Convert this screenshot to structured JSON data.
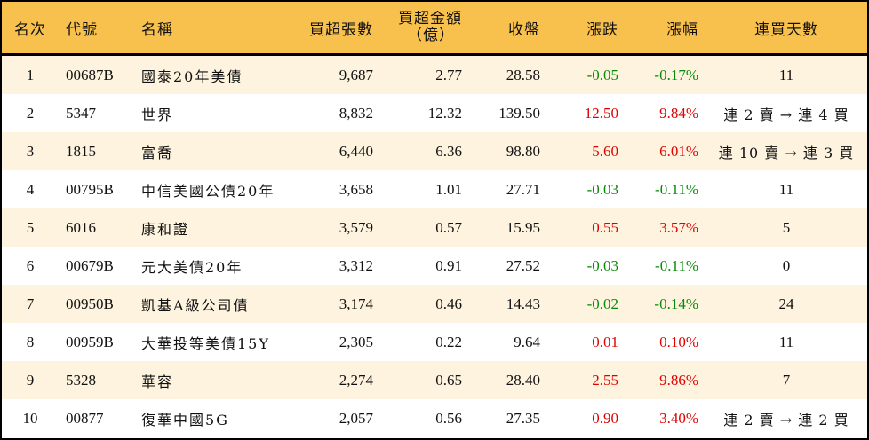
{
  "colors": {
    "header_bg": "#f8c14d",
    "row_odd_bg": "#fdf3de",
    "row_even_bg": "#ffffff",
    "up": "#e00000",
    "down": "#078a07",
    "border": "#000000"
  },
  "table": {
    "headers": {
      "rank": "名次",
      "code": "代號",
      "name": "名稱",
      "net_buy_volume": "買超張數",
      "net_buy_amount_line1": "買超金額",
      "net_buy_amount_line2": "（億）",
      "close": "收盤",
      "change": "漲跌",
      "change_pct": "漲幅",
      "consecutive_days": "連買天數"
    },
    "rows": [
      {
        "rank": "1",
        "code": "00687B",
        "name": "國泰20年美債",
        "volume": "9,687",
        "amount": "2.77",
        "close": "28.58",
        "change": "-0.05",
        "pct": "-0.17%",
        "dir": "down",
        "days": "11"
      },
      {
        "rank": "2",
        "code": "5347",
        "name": "世界",
        "volume": "8,832",
        "amount": "12.32",
        "close": "139.50",
        "change": "12.50",
        "pct": "9.84%",
        "dir": "up",
        "days": "連 2 賣 → 連 4 買"
      },
      {
        "rank": "3",
        "code": "1815",
        "name": "富喬",
        "volume": "6,440",
        "amount": "6.36",
        "close": "98.80",
        "change": "5.60",
        "pct": "6.01%",
        "dir": "up",
        "days": "連 10 賣 → 連 3 買"
      },
      {
        "rank": "4",
        "code": "00795B",
        "name": "中信美國公債20年",
        "volume": "3,658",
        "amount": "1.01",
        "close": "27.71",
        "change": "-0.03",
        "pct": "-0.11%",
        "dir": "down",
        "days": "11"
      },
      {
        "rank": "5",
        "code": "6016",
        "name": "康和證",
        "volume": "3,579",
        "amount": "0.57",
        "close": "15.95",
        "change": "0.55",
        "pct": "3.57%",
        "dir": "up",
        "days": "5"
      },
      {
        "rank": "6",
        "code": "00679B",
        "name": "元大美債20年",
        "volume": "3,312",
        "amount": "0.91",
        "close": "27.52",
        "change": "-0.03",
        "pct": "-0.11%",
        "dir": "down",
        "days": "0"
      },
      {
        "rank": "7",
        "code": "00950B",
        "name": "凱基A級公司債",
        "volume": "3,174",
        "amount": "0.46",
        "close": "14.43",
        "change": "-0.02",
        "pct": "-0.14%",
        "dir": "down",
        "days": "24"
      },
      {
        "rank": "8",
        "code": "00959B",
        "name": "大華投等美債15Y",
        "volume": "2,305",
        "amount": "0.22",
        "close": "9.64",
        "change": "0.01",
        "pct": "0.10%",
        "dir": "up",
        "days": "11"
      },
      {
        "rank": "9",
        "code": "5328",
        "name": "華容",
        "volume": "2,274",
        "amount": "0.65",
        "close": "28.40",
        "change": "2.55",
        "pct": "9.86%",
        "dir": "up",
        "days": "7"
      },
      {
        "rank": "10",
        "code": "00877",
        "name": "復華中國5G",
        "volume": "2,057",
        "amount": "0.56",
        "close": "27.35",
        "change": "0.90",
        "pct": "3.40%",
        "dir": "up",
        "days": "連 2 賣 → 連 2 買"
      }
    ]
  }
}
